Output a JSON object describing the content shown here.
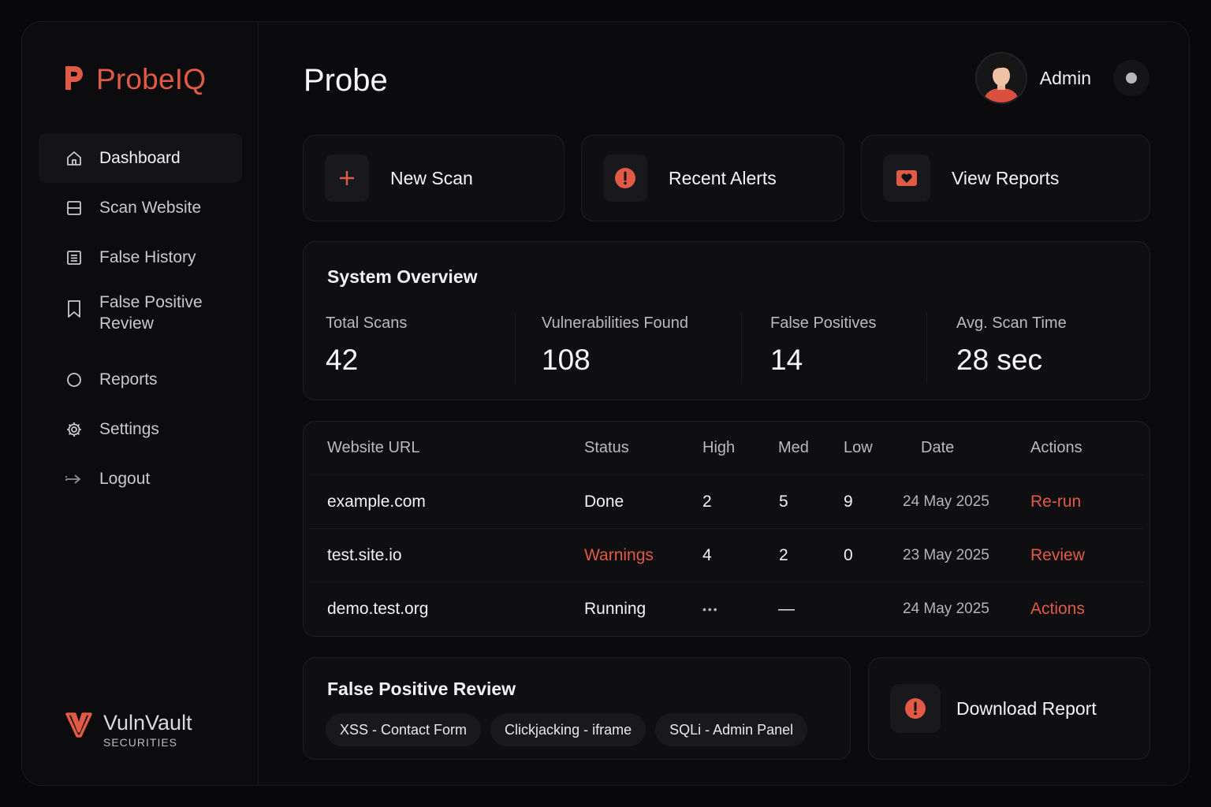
{
  "colors": {
    "accent": "#e05a45",
    "background": "#0b0b0d",
    "card": "#0f0f12",
    "text": "#f2f2f4",
    "muted": "#b9b9bf"
  },
  "brand": {
    "name": "ProbeIQ",
    "icon": "p-logo-icon"
  },
  "sidebar": {
    "items": [
      {
        "label": "Dashboard",
        "icon": "home-icon",
        "active": true
      },
      {
        "label": "Scan Website",
        "icon": "browser-window-icon"
      },
      {
        "label": "False History",
        "icon": "document-list-icon"
      },
      {
        "label": "False Positive Review",
        "icon": "bookmark-icon"
      },
      {
        "label": "Reports",
        "icon": "circle-icon"
      },
      {
        "label": "Settings",
        "icon": "gear-icon"
      },
      {
        "label": "Logout",
        "icon": "logout-arrow-icon"
      }
    ],
    "footer": {
      "name": "VulnVault",
      "subtitle": "SECURITIES",
      "icon": "v-logo-icon"
    }
  },
  "header": {
    "title": "Probe",
    "user": {
      "name": "Admin",
      "avatar": "avatar-icon",
      "status": "status-dot-icon"
    }
  },
  "quick_actions": [
    {
      "label": "New Scan",
      "icon": "plus-icon"
    },
    {
      "label": "Recent Alerts",
      "icon": "alert-circle-icon"
    },
    {
      "label": "View Reports",
      "icon": "heart-card-icon"
    }
  ],
  "overview": {
    "title": "System Overview",
    "stats": [
      {
        "label": "Total Scans",
        "value": "42"
      },
      {
        "label": "Vulnerabilities Found",
        "value": "108"
      },
      {
        "label": "False Positives",
        "value": "14"
      },
      {
        "label": "Avg. Scan Time",
        "value": "28 sec"
      }
    ]
  },
  "scans_table": {
    "columns": [
      "Website URL",
      "Status",
      "High",
      "Med",
      "Low",
      "Date",
      "Actions"
    ],
    "rows": [
      {
        "url": "example.com",
        "status": "Done",
        "high": "2",
        "med": "5",
        "low": "9",
        "date": "24 May 2025",
        "action": "Re-run"
      },
      {
        "url": "test.site.io",
        "status": "Warnings",
        "high": "4",
        "med": "2",
        "low": "0",
        "date": "23 May 2025",
        "action": "Review"
      },
      {
        "url": "demo.test.org",
        "status": "Running",
        "high": "•••",
        "med": "—",
        "low": "",
        "date": "24 May 2025",
        "action": "Actions"
      }
    ]
  },
  "false_positive_review": {
    "title": "False Positive Review",
    "chips": [
      "XSS - Contact Form",
      "Clickjacking - iframe",
      "SQLi - Admin Panel"
    ]
  },
  "download": {
    "label": "Download Report",
    "icon": "alert-circle-icon"
  }
}
